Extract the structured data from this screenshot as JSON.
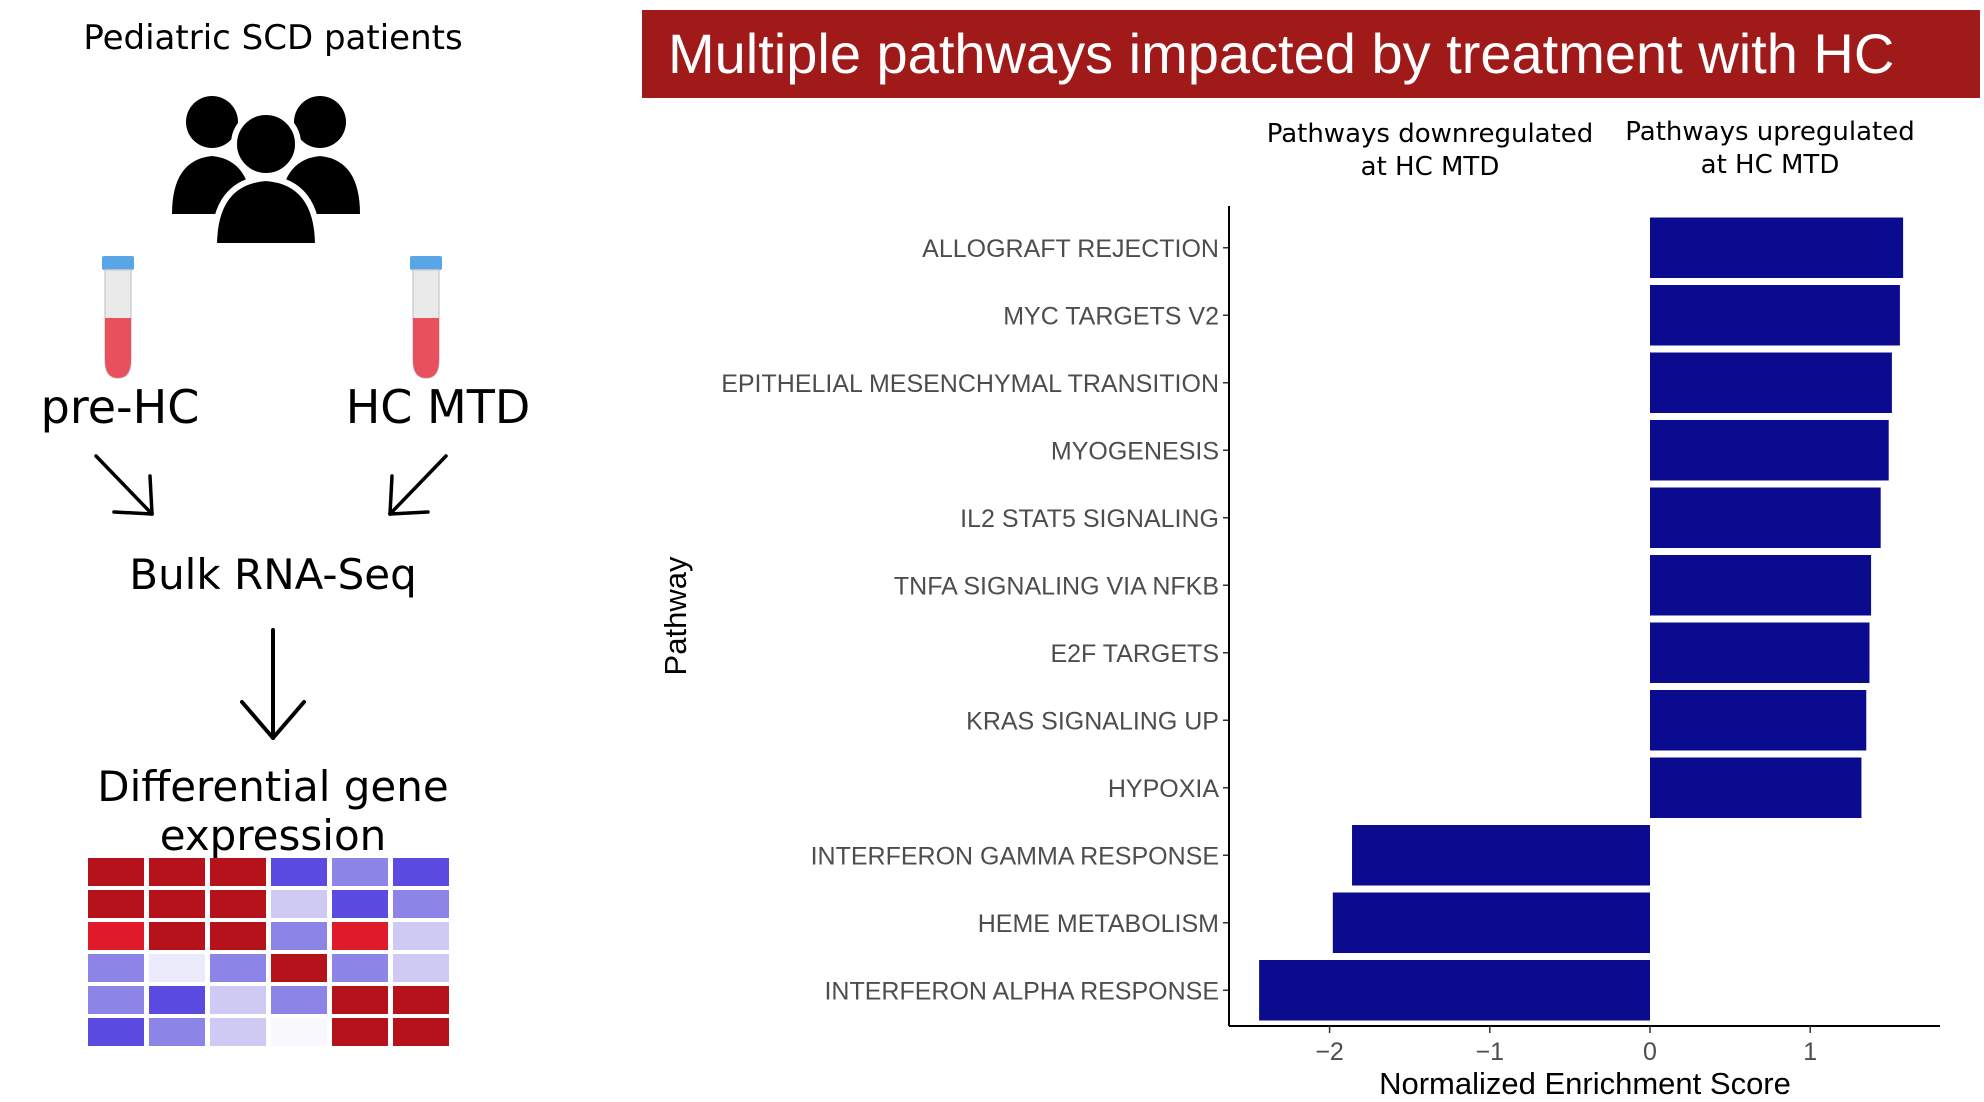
{
  "left_panel": {
    "title": "Pediatric SCD patients",
    "pre_label": "pre-HC",
    "mtd_label": "HC MTD",
    "bulk_label": "Bulk RNA-Seq",
    "dge_label": "Differential gene expression",
    "icons": {
      "patients": "people-group-icon",
      "tube": "blood-tube-icon",
      "arrow": "arrow-icon"
    },
    "heatmap_colors": [
      [
        "#b5121b",
        "#b5121b",
        "#b5121b",
        "#5b4be0",
        "#8d84e8",
        "#5b4be0"
      ],
      [
        "#b5121b",
        "#b5121b",
        "#b5121b",
        "#cfcaf4",
        "#5b4be0",
        "#8d84e8"
      ],
      [
        "#e11a2a",
        "#b5121b",
        "#b5121b",
        "#8d84e8",
        "#e11a2a",
        "#cfcaf4"
      ],
      [
        "#8d84e8",
        "#ecebfc",
        "#8d84e8",
        "#b5121b",
        "#8d84e8",
        "#cfcaf4"
      ],
      [
        "#8d84e8",
        "#5b4be0",
        "#cfcaf4",
        "#8d84e8",
        "#b5121b",
        "#b5121b"
      ],
      [
        "#5b4be0",
        "#8d84e8",
        "#cfcaf4",
        "#f8f8fd",
        "#b5121b",
        "#b5121b"
      ]
    ]
  },
  "banner": {
    "text": "Multiple pathways impacted by treatment with HC",
    "color": "#a01a1a"
  },
  "annotations": {
    "down": [
      "Pathways downregulated",
      "at HC MTD"
    ],
    "up": [
      "Pathways upregulated",
      "at HC MTD"
    ]
  },
  "chart_data": {
    "type": "bar",
    "orientation": "horizontal",
    "categories": [
      "ALLOGRAFT REJECTION",
      "MYC TARGETS V2",
      "EPITHELIAL MESENCHYMAL TRANSITION",
      "MYOGENESIS",
      "IL2 STAT5 SIGNALING",
      "TNFA SIGNALING VIA NFKB",
      "E2F TARGETS",
      "KRAS SIGNALING UP",
      "HYPOXIA",
      "INTERFERON GAMMA RESPONSE",
      "HEME METABOLISM",
      "INTERFERON ALPHA RESPONSE"
    ],
    "values": [
      1.58,
      1.56,
      1.51,
      1.49,
      1.44,
      1.38,
      1.37,
      1.35,
      1.32,
      -1.86,
      -1.98,
      -2.44
    ],
    "xlabel": "Normalized Enrichment Score",
    "ylabel": "Pathway",
    "xlim": [
      -2.6,
      1.78
    ],
    "xticks": [
      -2,
      -1,
      0,
      1
    ],
    "xtick_labels": [
      "−2",
      "−1",
      "0",
      "1"
    ],
    "bar_color": "#0b0b8f",
    "grid": false
  }
}
